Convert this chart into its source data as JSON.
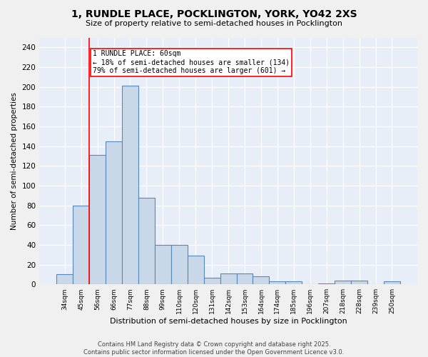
{
  "title": "1, RUNDLE PLACE, POCKLINGTON, YORK, YO42 2XS",
  "subtitle": "Size of property relative to semi-detached houses in Pocklington",
  "xlabel": "Distribution of semi-detached houses by size in Pocklington",
  "ylabel": "Number of semi-detached properties",
  "bar_color": "#c8d8e8",
  "bar_edge_color": "#5588bb",
  "background_color": "#e8eef8",
  "grid_color": "#ffffff",
  "fig_background": "#f0f0f0",
  "categories": [
    "34sqm",
    "45sqm",
    "56sqm",
    "66sqm",
    "77sqm",
    "88sqm",
    "99sqm",
    "110sqm",
    "120sqm",
    "131sqm",
    "142sqm",
    "153sqm",
    "164sqm",
    "174sqm",
    "185sqm",
    "196sqm",
    "207sqm",
    "218sqm",
    "228sqm",
    "239sqm",
    "250sqm"
  ],
  "values": [
    10,
    80,
    131,
    145,
    201,
    88,
    40,
    40,
    29,
    7,
    11,
    11,
    8,
    3,
    3,
    0,
    1,
    4,
    4,
    0,
    3
  ],
  "red_line_x": 1.5,
  "red_line_label": "1 RUNDLE PLACE: 60sqm",
  "annotation_line1": "← 18% of semi-detached houses are smaller (134)",
  "annotation_line2": "79% of semi-detached houses are larger (601) →",
  "ylim": [
    0,
    250
  ],
  "yticks": [
    0,
    20,
    40,
    60,
    80,
    100,
    120,
    140,
    160,
    180,
    200,
    220,
    240
  ],
  "footer1": "Contains HM Land Registry data © Crown copyright and database right 2025.",
  "footer2": "Contains public sector information licensed under the Open Government Licence v3.0."
}
